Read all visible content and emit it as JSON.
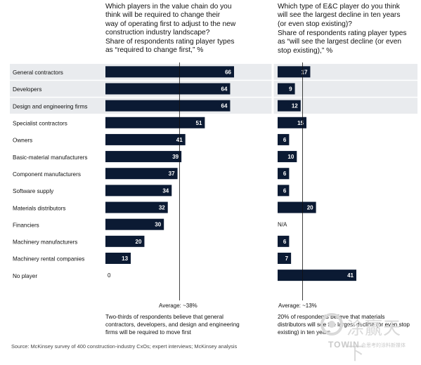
{
  "left_panel": {
    "question": "Which players in the value chain do you\nthink will be required to change their\nway of operating first to adjust to the new\nconstruction industry landscape?",
    "subtitle": "Share of respondents rating player types\nas “required to change first,” %",
    "average": "Average: ~38%",
    "note": "Two-thirds of respondents believe that general\ncontractors, developers, and design and engineering\nfirms will be required to move first"
  },
  "right_panel": {
    "question": "Which type of E&C player do you think\nwill see the largest decline in ten years\n(or even stop existing)?",
    "subtitle": "Share of respondents rating player types\nas “will see the largest decline (or even\nstop existing),” %",
    "average": "Average: ~13%",
    "note": "20% of respondents believe that materials\ndistributors will see the largest decline (or even stop\nexisting) in ten years"
  },
  "source": "Source: McKinsey survey of 400 construction-industry CxOs; expert interviews; McKinsey analysis",
  "watermark": {
    "brand": "TOWIN",
    "tagline": "会思考的涂料新媒体",
    "logo_text": "涂赢天下"
  },
  "colors": {
    "bar": "#0b1a33",
    "highlight": "#e9ebee",
    "avg_line": "#111111",
    "watermark": "#d9d9d9"
  },
  "chart_data": [
    {
      "type": "bar",
      "orientation": "horizontal",
      "title": "Which players in the value chain do you think will be required to change their way of operating first to adjust to the new construction industry landscape?",
      "subtitle": "Share of respondents rating player types as “required to change first,” %",
      "categories": [
        "General contractors",
        "Developers",
        "Design and engineering firms",
        "Specialist contractors",
        "Owners",
        "Basic-material manufacturers",
        "Component manufacturers",
        "Software supply",
        "Materials distributors",
        "Financiers",
        "Machinery manufacturers",
        "Machinery rental companies",
        "No player"
      ],
      "values": [
        66,
        64,
        64,
        51,
        41,
        39,
        37,
        34,
        32,
        30,
        20,
        13,
        0
      ],
      "value_labels": [
        "66",
        "64",
        "64",
        "51",
        "41",
        "39",
        "37",
        "34",
        "32",
        "30",
        "20",
        "13",
        "0"
      ],
      "highlighted_categories": [
        "General contractors",
        "Developers",
        "Design and engineering firms"
      ],
      "average": 38,
      "xlim": [
        0,
        70
      ]
    },
    {
      "type": "bar",
      "orientation": "horizontal",
      "title": "Which type of E&C player do you think will see the largest decline in ten years (or even stop existing)?",
      "subtitle": "Share of respondents rating player types as “will see the largest decline (or even stop existing),” %",
      "categories": [
        "General contractors",
        "Developers",
        "Design and engineering firms",
        "Specialist contractors",
        "Owners",
        "Basic-material manufacturers",
        "Component manufacturers",
        "Software supply",
        "Materials distributors",
        "Financiers",
        "Machinery manufacturers",
        "Machinery rental companies",
        "No player"
      ],
      "values": [
        17,
        9,
        12,
        15,
        6,
        10,
        6,
        6,
        20,
        null,
        6,
        7,
        41
      ],
      "value_labels": [
        "17",
        "9",
        "12",
        "15",
        "6",
        "10",
        "6",
        "6",
        "20",
        "N/A",
        "6",
        "7",
        "41"
      ],
      "highlighted_categories": [
        "General contractors",
        "Developers",
        "Design and engineering firms"
      ],
      "average": 13,
      "xlim": [
        0,
        45
      ]
    }
  ]
}
